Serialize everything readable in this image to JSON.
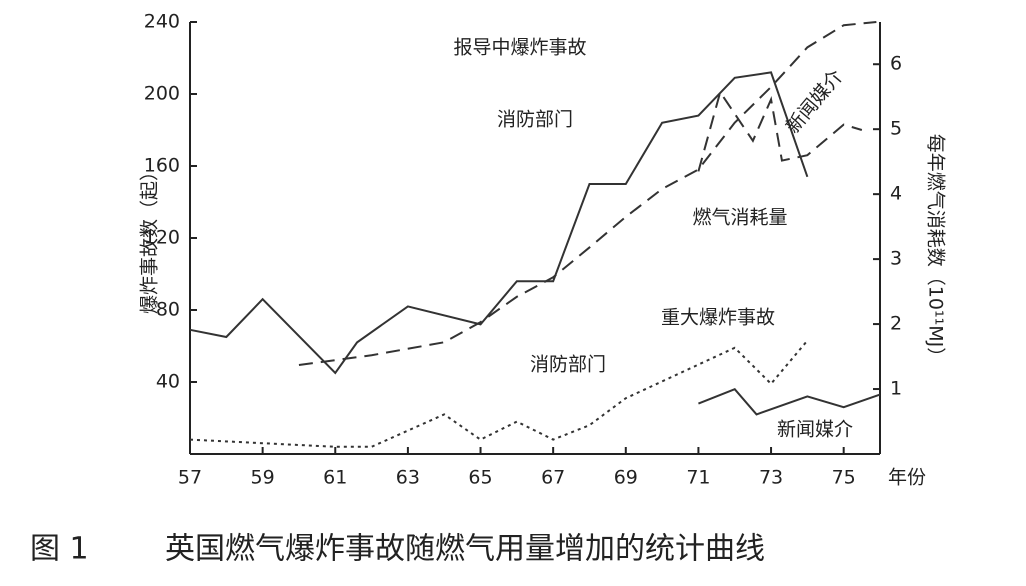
{
  "chart_data": {
    "type": "line",
    "caption_label": "图 1",
    "title": "英国燃气爆炸事故随燃气用量增加的统计曲线",
    "x_label": "年份",
    "y_label": "爆炸事故数（起）",
    "y2_label": "每年燃气消耗数（10¹¹MJ）",
    "xlim": [
      57,
      76
    ],
    "xticks": [
      57,
      59,
      61,
      63,
      65,
      67,
      69,
      71,
      73,
      75
    ],
    "ylim": [
      0,
      240
    ],
    "yticks": [
      40,
      80,
      120,
      160,
      200,
      240
    ],
    "y2lim": [
      0,
      6.65
    ],
    "y2ticks": [
      1,
      2,
      3,
      4,
      5,
      6
    ],
    "annotations": [
      "报导中爆炸事故",
      "重大爆炸事故"
    ],
    "series": [
      {
        "name": "消防部门",
        "color": "#333333",
        "style": "solid",
        "x": [
          57,
          58,
          59,
          61,
          61.6,
          63,
          65,
          66,
          67,
          68,
          69,
          70,
          71,
          72,
          73,
          74
        ],
        "values": [
          69,
          65,
          86,
          45,
          62,
          82,
          72,
          96,
          96,
          150,
          150,
          184,
          188,
          209,
          212,
          154
        ]
      },
      {
        "name": "新闻媒介",
        "color": "#333333",
        "style": "dashed",
        "x": [
          71,
          71.6,
          72.5,
          73,
          73.3,
          74,
          75,
          75.5
        ],
        "values": [
          157,
          201,
          174,
          197,
          163,
          166,
          183,
          180
        ]
      },
      {
        "name": "燃气消耗量",
        "color": "#333333",
        "style": "dashed",
        "axis": "y2",
        "x": [
          60,
          62,
          64,
          65,
          66,
          67,
          68,
          69,
          70,
          71,
          72,
          73,
          74,
          75,
          75.9
        ],
        "values": [
          1.37,
          1.52,
          1.72,
          2.03,
          2.42,
          2.72,
          3.18,
          3.65,
          4.08,
          4.38,
          5.1,
          5.65,
          6.26,
          6.6,
          6.65
        ]
      },
      {
        "name": "消防部门",
        "color": "#333333",
        "style": "dotted",
        "x": [
          57,
          61,
          62,
          64,
          65,
          66,
          67,
          68,
          69,
          72,
          73,
          74
        ],
        "values": [
          8,
          4,
          4,
          22,
          8,
          18,
          8,
          16,
          31,
          59,
          39,
          63
        ]
      },
      {
        "name": "新闻媒介",
        "color": "#333333",
        "style": "solid",
        "x": [
          71,
          72,
          72.6,
          74,
          75,
          76
        ],
        "values": [
          28,
          36,
          22,
          32,
          26,
          33
        ]
      }
    ]
  }
}
